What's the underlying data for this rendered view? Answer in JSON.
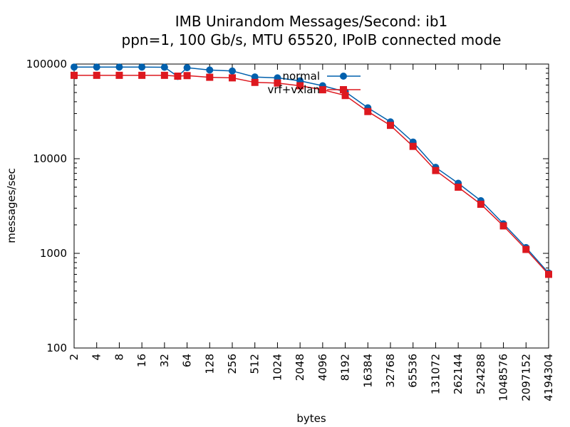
{
  "chart_data": {
    "type": "line",
    "title": "IMB Unirandom Messages/Second: ib1",
    "subtitle": "ppn=1, 100 Gb/s, MTU 65520, IPoIB connected mode",
    "xlabel": "bytes",
    "ylabel": "messages/sec",
    "x_scale": "log2",
    "y_scale": "log10",
    "xlim": [
      2,
      4194304
    ],
    "ylim": [
      100,
      100000
    ],
    "grid": false,
    "legend_position": "top-center",
    "x_ticks": [
      "2",
      "4",
      "8",
      "16",
      "32",
      "64",
      "128",
      "256",
      "512",
      "1024",
      "2048",
      "4096",
      "8192",
      "16384",
      "32768",
      "65536",
      "131072",
      "262144",
      "524288",
      "1048576",
      "2097152",
      "4194304"
    ],
    "x_tick_values": [
      2,
      4,
      8,
      16,
      32,
      64,
      128,
      256,
      512,
      1024,
      2048,
      4096,
      8192,
      16384,
      32768,
      65536,
      131072,
      262144,
      524288,
      1048576,
      2097152,
      4194304
    ],
    "y_ticks": [
      "100",
      "1000",
      "10000",
      "100000"
    ],
    "y_tick_values": [
      100,
      1000,
      10000,
      100000
    ],
    "x": [
      2,
      4,
      8,
      16,
      32,
      48,
      64,
      128,
      256,
      512,
      1024,
      2048,
      4096,
      8192,
      16384,
      32768,
      65536,
      131072,
      262144,
      524288,
      1048576,
      2097152,
      4194304
    ],
    "series": [
      {
        "name": "normal",
        "color": "#0060ad",
        "marker": "circle",
        "values": [
          93000,
          93000,
          93000,
          93000,
          92500,
          74000,
          91500,
          86500,
          84500,
          73000,
          71500,
          66500,
          59000,
          51000,
          34500,
          24500,
          15000,
          8100,
          5500,
          3600,
          2050,
          1150,
          620
        ]
      },
      {
        "name": "vrf+vxlan",
        "color": "#dd181f",
        "marker": "square",
        "values": [
          76000,
          76000,
          76000,
          76000,
          76000,
          74500,
          75500,
          72500,
          71500,
          64000,
          63000,
          59000,
          53500,
          46500,
          31500,
          22500,
          13500,
          7500,
          5000,
          3300,
          1950,
          1100,
          600
        ]
      }
    ]
  }
}
